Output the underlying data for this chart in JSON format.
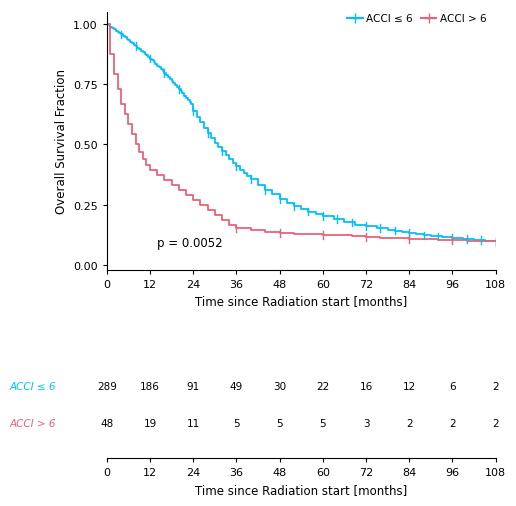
{
  "cyan_color": "#00BFFF",
  "red_color": "#E8637A",
  "bg_color": "#FFFFFF",
  "xlabel": "Time since Radiation start [months]",
  "ylabel": "Overall Survival Fraction",
  "pvalue": "p = 0.0052",
  "xlim": [
    0,
    108
  ],
  "ylim": [
    -0.02,
    1.05
  ],
  "xticks": [
    0,
    12,
    24,
    36,
    48,
    60,
    72,
    84,
    96,
    108
  ],
  "yticks": [
    0.0,
    0.25,
    0.5,
    0.75,
    1.0
  ],
  "legend_label1": "ACCI ≤ 6",
  "legend_label2": "ACCI > 6",
  "table_times": [
    0,
    12,
    24,
    36,
    48,
    60,
    72,
    84,
    96,
    108
  ],
  "table_row1_label": "ACCI ≤ 6",
  "table_row2_label": "ACCI > 6",
  "table_row1_values": [
    289,
    186,
    91,
    49,
    30,
    22,
    16,
    12,
    6,
    2
  ],
  "table_row2_values": [
    48,
    19,
    11,
    5,
    5,
    5,
    3,
    2,
    2,
    2
  ],
  "cyan_times": [
    0,
    0.5,
    1,
    1.5,
    2,
    2.5,
    3,
    3.5,
    4,
    4.5,
    5,
    5.5,
    6,
    6.5,
    7,
    7.5,
    8,
    8.5,
    9,
    9.5,
    10,
    10.5,
    11,
    11.5,
    12,
    12.5,
    13,
    13.5,
    14,
    14.5,
    15,
    15.5,
    16,
    16.5,
    17,
    17.5,
    18,
    18.5,
    19,
    19.5,
    20,
    20.5,
    21,
    21.5,
    22,
    22.5,
    23,
    23.5,
    24,
    25,
    26,
    27,
    28,
    29,
    30,
    31,
    32,
    33,
    34,
    35,
    36,
    37,
    38,
    39,
    40,
    42,
    44,
    46,
    48,
    50,
    52,
    54,
    56,
    58,
    60,
    63,
    66,
    69,
    72,
    75,
    78,
    80,
    82,
    84,
    86,
    88,
    90,
    93,
    96,
    99,
    102,
    105,
    108
  ],
  "cyan_surv": [
    1.0,
    0.995,
    0.989,
    0.984,
    0.978,
    0.972,
    0.967,
    0.961,
    0.956,
    0.95,
    0.944,
    0.938,
    0.932,
    0.926,
    0.92,
    0.914,
    0.908,
    0.901,
    0.895,
    0.889,
    0.882,
    0.876,
    0.869,
    0.863,
    0.856,
    0.849,
    0.842,
    0.835,
    0.827,
    0.82,
    0.812,
    0.804,
    0.796,
    0.788,
    0.78,
    0.772,
    0.764,
    0.755,
    0.747,
    0.738,
    0.729,
    0.72,
    0.712,
    0.703,
    0.694,
    0.685,
    0.676,
    0.667,
    0.64,
    0.615,
    0.592,
    0.569,
    0.548,
    0.527,
    0.508,
    0.49,
    0.472,
    0.455,
    0.439,
    0.423,
    0.409,
    0.395,
    0.381,
    0.368,
    0.356,
    0.333,
    0.312,
    0.293,
    0.274,
    0.258,
    0.243,
    0.232,
    0.222,
    0.212,
    0.203,
    0.19,
    0.177,
    0.168,
    0.161,
    0.154,
    0.147,
    0.143,
    0.138,
    0.133,
    0.128,
    0.123,
    0.119,
    0.115,
    0.111,
    0.108,
    0.104,
    0.101,
    0.098
  ],
  "red_times": [
    0,
    1,
    2,
    3,
    4,
    5,
    6,
    7,
    8,
    9,
    10,
    11,
    12,
    14,
    16,
    18,
    20,
    22,
    24,
    26,
    28,
    30,
    32,
    34,
    36,
    40,
    44,
    48,
    52,
    56,
    60,
    64,
    68,
    72,
    76,
    80,
    84,
    88,
    92,
    96,
    100,
    104,
    108
  ],
  "red_surv": [
    1.0,
    0.875,
    0.792,
    0.729,
    0.667,
    0.625,
    0.583,
    0.542,
    0.5,
    0.469,
    0.438,
    0.417,
    0.396,
    0.375,
    0.354,
    0.333,
    0.313,
    0.292,
    0.271,
    0.25,
    0.229,
    0.208,
    0.188,
    0.167,
    0.152,
    0.145,
    0.138,
    0.133,
    0.13,
    0.128,
    0.125,
    0.123,
    0.121,
    0.115,
    0.113,
    0.111,
    0.109,
    0.107,
    0.105,
    0.103,
    0.101,
    0.099,
    0.097
  ],
  "cyan_censor_x": [
    4,
    8,
    12,
    16,
    20,
    24,
    28,
    32,
    36,
    40,
    44,
    48,
    52,
    56,
    60,
    64,
    68,
    72,
    76,
    80,
    84,
    88,
    92,
    96,
    100,
    104,
    108
  ],
  "red_censor_x": [
    36,
    48,
    60,
    72,
    84,
    96,
    108
  ]
}
